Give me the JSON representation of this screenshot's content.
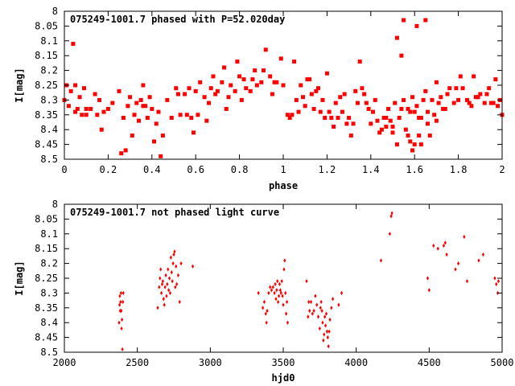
{
  "chart_data": [
    {
      "type": "scatter",
      "title": "075249-1001.7 phased with P=52.020day",
      "xlabel": "phase",
      "ylabel": "I[mag]",
      "xlim": [
        0,
        2
      ],
      "ylim": [
        8.5,
        8.0
      ],
      "y_inverted": true,
      "x_ticks": [
        0,
        0.2,
        0.4,
        0.6,
        0.8,
        1,
        1.2,
        1.4,
        1.6,
        1.8,
        2
      ],
      "x_tick_labels": [
        "0",
        "0.2",
        "0.4",
        "0.6",
        "0.8",
        "1",
        "1.2",
        "1.4",
        "1.6",
        "1.8",
        "2"
      ],
      "y_ticks": [
        8,
        8.05,
        8.1,
        8.15,
        8.2,
        8.25,
        8.3,
        8.35,
        8.4,
        8.45,
        8.5
      ],
      "y_tick_labels": [
        "8",
        "8.05",
        "8.1",
        "8.15",
        "8.2",
        "8.25",
        "8.3",
        "8.35",
        "8.4",
        "8.45",
        "8.5"
      ],
      "grid": false,
      "marker_color": "#ff0000",
      "points": [
        [
          0.01,
          8.25
        ],
        [
          0.02,
          8.32
        ],
        [
          0.03,
          8.27
        ],
        [
          0.04,
          8.11
        ],
        [
          0.05,
          8.34
        ],
        [
          0.05,
          8.25
        ],
        [
          0.06,
          8.33
        ],
        [
          0.07,
          8.29
        ],
        [
          0.08,
          8.35
        ],
        [
          0.09,
          8.26
        ],
        [
          0.1,
          8.35
        ],
        [
          0.12,
          8.33
        ],
        [
          0.14,
          8.28
        ],
        [
          0.15,
          8.35
        ],
        [
          0.16,
          8.3
        ],
        [
          0.17,
          8.4
        ],
        [
          0.18,
          8.34
        ],
        [
          0.2,
          8.33
        ],
        [
          0.22,
          8.31
        ],
        [
          0.25,
          8.27
        ],
        [
          0.27,
          8.36
        ],
        [
          0.28,
          8.47
        ],
        [
          0.29,
          8.32
        ],
        [
          0.3,
          8.29
        ],
        [
          0.31,
          8.42
        ],
        [
          0.32,
          8.35
        ],
        [
          0.33,
          8.31
        ],
        [
          0.34,
          8.37
        ],
        [
          0.35,
          8.3
        ],
        [
          0.36,
          8.25
        ],
        [
          0.37,
          8.32
        ],
        [
          0.38,
          8.36
        ],
        [
          0.39,
          8.29
        ],
        [
          0.4,
          8.33
        ],
        [
          0.41,
          8.44
        ],
        [
          0.42,
          8.38
        ],
        [
          0.43,
          8.34
        ],
        [
          0.45,
          8.42
        ],
        [
          0.47,
          8.3
        ],
        [
          0.49,
          8.36
        ],
        [
          0.51,
          8.26
        ],
        [
          0.52,
          8.28
        ],
        [
          0.53,
          8.35
        ],
        [
          0.55,
          8.28
        ],
        [
          0.57,
          8.26
        ],
        [
          0.58,
          8.36
        ],
        [
          0.59,
          8.41
        ],
        [
          0.6,
          8.27
        ],
        [
          0.62,
          8.24
        ],
        [
          0.64,
          8.29
        ],
        [
          0.65,
          8.37
        ],
        [
          0.66,
          8.31
        ],
        [
          0.67,
          8.26
        ],
        [
          0.68,
          8.22
        ],
        [
          0.7,
          8.27
        ],
        [
          0.72,
          8.24
        ],
        [
          0.73,
          8.19
        ],
        [
          0.74,
          8.33
        ],
        [
          0.75,
          8.29
        ],
        [
          0.76,
          8.25
        ],
        [
          0.78,
          8.27
        ],
        [
          0.8,
          8.22
        ],
        [
          0.81,
          8.3
        ],
        [
          0.82,
          8.23
        ],
        [
          0.83,
          8.26
        ],
        [
          0.85,
          8.27
        ],
        [
          0.87,
          8.2
        ],
        [
          0.88,
          8.25
        ],
        [
          0.9,
          8.24
        ],
        [
          0.91,
          8.2
        ],
        [
          0.92,
          8.13
        ],
        [
          0.94,
          8.22
        ],
        [
          0.95,
          8.28
        ],
        [
          0.97,
          8.24
        ],
        [
          0.99,
          8.16
        ],
        [
          1.0,
          8.25
        ],
        [
          1.02,
          8.35
        ],
        [
          1.03,
          8.36
        ],
        [
          1.05,
          8.17
        ],
        [
          1.06,
          8.3
        ],
        [
          1.07,
          8.34
        ],
        [
          1.08,
          8.25
        ],
        [
          1.1,
          8.32
        ],
        [
          1.11,
          8.23
        ],
        [
          1.13,
          8.28
        ],
        [
          1.14,
          8.33
        ],
        [
          1.15,
          8.27
        ],
        [
          1.16,
          8.26
        ],
        [
          1.17,
          8.34
        ],
        [
          1.18,
          8.3
        ],
        [
          1.19,
          8.36
        ],
        [
          1.2,
          8.21
        ],
        [
          1.21,
          8.34
        ],
        [
          1.22,
          8.36
        ],
        [
          1.23,
          8.39
        ],
        [
          1.24,
          8.31
        ],
        [
          1.25,
          8.36
        ],
        [
          1.26,
          8.29
        ],
        [
          1.27,
          8.34
        ],
        [
          1.28,
          8.28
        ],
        [
          1.3,
          8.36
        ],
        [
          1.31,
          8.42
        ],
        [
          1.32,
          8.38
        ],
        [
          1.33,
          8.27
        ],
        [
          1.34,
          8.31
        ],
        [
          1.35,
          8.17
        ],
        [
          1.36,
          8.26
        ],
        [
          1.38,
          8.31
        ],
        [
          1.39,
          8.33
        ],
        [
          1.4,
          8.38
        ],
        [
          1.41,
          8.34
        ],
        [
          1.42,
          8.3
        ],
        [
          1.43,
          8.37
        ],
        [
          1.45,
          8.4
        ],
        [
          1.46,
          8.36
        ],
        [
          1.47,
          8.39
        ],
        [
          1.48,
          8.33
        ],
        [
          1.49,
          8.37
        ],
        [
          1.5,
          8.41
        ],
        [
          1.51,
          8.31
        ],
        [
          1.52,
          8.45
        ],
        [
          1.53,
          8.36
        ],
        [
          1.54,
          8.33
        ],
        [
          1.55,
          8.3
        ],
        [
          1.56,
          8.4
        ],
        [
          1.57,
          8.33
        ],
        [
          1.58,
          8.34
        ],
        [
          1.59,
          8.29
        ],
        [
          1.6,
          8.45
        ],
        [
          1.61,
          8.32
        ],
        [
          1.62,
          8.42
        ],
        [
          1.63,
          8.36
        ],
        [
          1.64,
          8.3
        ],
        [
          1.65,
          8.27
        ],
        [
          1.66,
          8.34
        ],
        [
          1.67,
          8.42
        ],
        [
          1.68,
          8.3
        ],
        [
          1.7,
          8.24
        ],
        [
          1.72,
          8.29
        ],
        [
          1.74,
          8.33
        ],
        [
          1.76,
          8.26
        ],
        [
          1.78,
          8.31
        ],
        [
          1.8,
          8.3
        ],
        [
          1.82,
          8.26
        ],
        [
          1.84,
          8.3
        ],
        [
          1.86,
          8.32
        ],
        [
          1.88,
          8.29
        ],
        [
          1.9,
          8.28
        ],
        [
          1.92,
          8.31
        ],
        [
          1.94,
          8.26
        ],
        [
          1.96,
          8.31
        ],
        [
          1.98,
          8.32
        ],
        [
          1.52,
          8.09
        ],
        [
          1.54,
          8.15
        ],
        [
          1.55,
          8.03
        ],
        [
          1.57,
          8.42
        ],
        [
          1.58,
          8.44
        ],
        [
          1.59,
          8.47
        ],
        [
          1.6,
          8.34
        ],
        [
          1.62,
          8.36
        ],
        [
          1.63,
          8.45
        ],
        [
          1.66,
          8.38
        ],
        [
          1.69,
          8.35
        ],
        [
          1.71,
          8.31
        ],
        [
          1.73,
          8.33
        ],
        [
          1.79,
          8.26
        ],
        [
          1.87,
          8.22
        ],
        [
          1.93,
          8.28
        ],
        [
          1.97,
          8.23
        ],
        [
          2.0,
          8.35
        ],
        [
          0.0,
          8.3
        ],
        [
          0.1,
          8.33
        ],
        [
          0.26,
          8.48
        ],
        [
          0.36,
          8.32
        ],
        [
          0.44,
          8.49
        ],
        [
          0.56,
          8.35
        ],
        [
          0.61,
          8.35
        ],
        [
          0.69,
          8.28
        ],
        [
          0.79,
          8.17
        ],
        [
          0.86,
          8.23
        ],
        [
          0.96,
          8.24
        ],
        [
          1.04,
          8.35
        ],
        [
          1.09,
          8.29
        ],
        [
          1.12,
          8.23
        ],
        [
          1.29,
          8.38
        ],
        [
          1.37,
          8.28
        ],
        [
          1.44,
          8.41
        ],
        [
          1.47,
          8.36
        ],
        [
          1.5,
          8.39
        ],
        [
          1.61,
          8.05
        ],
        [
          1.65,
          8.03
        ],
        [
          1.7,
          8.37
        ],
        [
          1.75,
          8.28
        ],
        [
          1.81,
          8.22
        ],
        [
          1.85,
          8.31
        ],
        [
          1.89,
          8.29
        ],
        [
          1.95,
          8.31
        ],
        [
          1.99,
          8.3
        ]
      ]
    },
    {
      "type": "scatter",
      "title": "075249-1001.7 not phased light curve",
      "xlabel": "hjd0",
      "ylabel": "I[mag]",
      "xlim": [
        2000,
        5000
      ],
      "ylim": [
        8.5,
        8.0
      ],
      "y_inverted": true,
      "x_ticks": [
        2000,
        2500,
        3000,
        3500,
        4000,
        4500,
        5000
      ],
      "x_tick_labels": [
        "2000",
        "2500",
        "3000",
        "3500",
        "4000",
        "4500",
        "5000"
      ],
      "y_ticks": [
        8,
        8.05,
        8.1,
        8.15,
        8.2,
        8.25,
        8.3,
        8.35,
        8.4,
        8.45,
        8.5
      ],
      "y_tick_labels": [
        "8",
        "8.05",
        "8.1",
        "8.15",
        "8.2",
        "8.25",
        "8.3",
        "8.35",
        "8.4",
        "8.45",
        "8.5"
      ],
      "grid": false,
      "marker_color": "#ff0000",
      "points": [
        [
          2375,
          8.4
        ],
        [
          2378,
          8.34
        ],
        [
          2380,
          8.31
        ],
        [
          2382,
          8.36
        ],
        [
          2385,
          8.33
        ],
        [
          2388,
          8.3
        ],
        [
          2390,
          8.36
        ],
        [
          2392,
          8.42
        ],
        [
          2395,
          8.39
        ],
        [
          2398,
          8.49
        ],
        [
          2401,
          8.33
        ],
        [
          2404,
          8.3
        ],
        [
          2640,
          8.35
        ],
        [
          2650,
          8.28
        ],
        [
          2655,
          8.25
        ],
        [
          2660,
          8.22
        ],
        [
          2665,
          8.3
        ],
        [
          2670,
          8.27
        ],
        [
          2675,
          8.26
        ],
        [
          2680,
          8.32
        ],
        [
          2685,
          8.34
        ],
        [
          2690,
          8.28
        ],
        [
          2695,
          8.24
        ],
        [
          2700,
          8.31
        ],
        [
          2705,
          8.27
        ],
        [
          2710,
          8.22
        ],
        [
          2715,
          8.29
        ],
        [
          2720,
          8.25
        ],
        [
          2725,
          8.3
        ],
        [
          2730,
          8.18
        ],
        [
          2735,
          8.23
        ],
        [
          2740,
          8.26
        ],
        [
          2745,
          8.2
        ],
        [
          2750,
          8.17
        ],
        [
          2755,
          8.16
        ],
        [
          2760,
          8.28
        ],
        [
          2765,
          8.21
        ],
        [
          2770,
          8.27
        ],
        [
          2780,
          8.24
        ],
        [
          2790,
          8.33
        ],
        [
          2800,
          8.2
        ],
        [
          2880,
          8.21
        ],
        [
          3330,
          8.3
        ],
        [
          3360,
          8.35
        ],
        [
          3370,
          8.33
        ],
        [
          3380,
          8.37
        ],
        [
          3385,
          8.4
        ],
        [
          3390,
          8.36
        ],
        [
          3400,
          8.3
        ],
        [
          3410,
          8.28
        ],
        [
          3420,
          8.29
        ],
        [
          3430,
          8.28
        ],
        [
          3440,
          8.3
        ],
        [
          3445,
          8.27
        ],
        [
          3450,
          8.32
        ],
        [
          3455,
          8.29
        ],
        [
          3460,
          8.26
        ],
        [
          3465,
          8.33
        ],
        [
          3470,
          8.31
        ],
        [
          3475,
          8.27
        ],
        [
          3480,
          8.29
        ],
        [
          3485,
          8.3
        ],
        [
          3490,
          8.26
        ],
        [
          3495,
          8.31
        ],
        [
          3500,
          8.34
        ],
        [
          3505,
          8.22
        ],
        [
          3510,
          8.19
        ],
        [
          3515,
          8.3
        ],
        [
          3520,
          8.37
        ],
        [
          3525,
          8.33
        ],
        [
          3530,
          8.4
        ],
        [
          3660,
          8.26
        ],
        [
          3670,
          8.38
        ],
        [
          3675,
          8.33
        ],
        [
          3680,
          8.36
        ],
        [
          3690,
          8.33
        ],
        [
          3700,
          8.37
        ],
        [
          3710,
          8.36
        ],
        [
          3720,
          8.31
        ],
        [
          3730,
          8.34
        ],
        [
          3740,
          8.38
        ],
        [
          3750,
          8.42
        ],
        [
          3755,
          8.35
        ],
        [
          3760,
          8.33
        ],
        [
          3765,
          8.36
        ],
        [
          3770,
          8.4
        ],
        [
          3775,
          8.46
        ],
        [
          3780,
          8.44
        ],
        [
          3785,
          8.38
        ],
        [
          3790,
          8.41
        ],
        [
          3795,
          8.37
        ],
        [
          3800,
          8.43
        ],
        [
          3805,
          8.45
        ],
        [
          3810,
          8.48
        ],
        [
          3815,
          8.43
        ],
        [
          3820,
          8.39
        ],
        [
          3830,
          8.35
        ],
        [
          3840,
          8.32
        ],
        [
          3880,
          8.34
        ],
        [
          3900,
          8.3
        ],
        [
          4170,
          8.19
        ],
        [
          4230,
          8.1
        ],
        [
          4240,
          8.04
        ],
        [
          4245,
          8.03
        ],
        [
          4490,
          8.25
        ],
        [
          4500,
          8.29
        ],
        [
          4530,
          8.14
        ],
        [
          4560,
          8.15
        ],
        [
          4600,
          8.14
        ],
        [
          4610,
          8.13
        ],
        [
          4620,
          8.17
        ],
        [
          4680,
          8.22
        ],
        [
          4700,
          8.2
        ],
        [
          4740,
          8.11
        ],
        [
          4760,
          8.26
        ],
        [
          4840,
          8.19
        ],
        [
          4870,
          8.17
        ],
        [
          4950,
          8.25
        ],
        [
          4960,
          8.27
        ],
        [
          4970,
          8.3
        ],
        [
          4975,
          8.26
        ]
      ]
    }
  ]
}
